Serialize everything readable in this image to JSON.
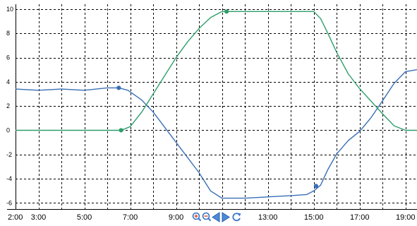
{
  "chart_data": {
    "type": "line",
    "xlim": [
      2.0,
      19.5
    ],
    "ylim": [
      -6.5,
      10.4
    ],
    "grid": true,
    "y_ticks": [
      {
        "value": 10,
        "label": "10"
      },
      {
        "value": 8,
        "label": "8"
      },
      {
        "value": 6,
        "label": "6"
      },
      {
        "value": 4,
        "label": "4"
      },
      {
        "value": 2,
        "label": "2"
      },
      {
        "value": 0,
        "label": "0"
      },
      {
        "value": -2,
        "label": "-2"
      },
      {
        "value": -4,
        "label": "-4"
      },
      {
        "value": -6,
        "label": "-6"
      }
    ],
    "x_ticks": [
      {
        "value": 2,
        "label": "2:00"
      },
      {
        "value": 3,
        "label": "3:00"
      },
      {
        "value": 5,
        "label": "5:00"
      },
      {
        "value": 7,
        "label": "7:00"
      },
      {
        "value": 9,
        "label": "9:00"
      },
      {
        "value": 13,
        "label": "13:00"
      },
      {
        "value": 15,
        "label": "15:00"
      },
      {
        "value": 17,
        "label": "17:00"
      },
      {
        "value": 19,
        "label": "19:00"
      }
    ],
    "x_grid": [
      2,
      3,
      4,
      5,
      6,
      7,
      8,
      9,
      10,
      11,
      12,
      13,
      14,
      15,
      16,
      17,
      18,
      19
    ],
    "y_grid": [
      10,
      8,
      6,
      4,
      2,
      0,
      -2,
      -4,
      -6
    ],
    "series": [
      {
        "color": "#3a6fb5",
        "points": [
          [
            2.0,
            3.4
          ],
          [
            3.0,
            3.3
          ],
          [
            4.0,
            3.4
          ],
          [
            5.0,
            3.3
          ],
          [
            6.0,
            3.5
          ],
          [
            6.5,
            3.5
          ],
          [
            6.9,
            3.3
          ],
          [
            7.5,
            2.5
          ],
          [
            8.0,
            1.5
          ],
          [
            9.0,
            -1.0
          ],
          [
            10.0,
            -3.5
          ],
          [
            10.5,
            -5.0
          ],
          [
            11.0,
            -5.6
          ],
          [
            12.0,
            -5.6
          ],
          [
            13.0,
            -5.5
          ],
          [
            14.0,
            -5.4
          ],
          [
            14.7,
            -5.3
          ],
          [
            15.0,
            -5.0
          ],
          [
            15.3,
            -4.4
          ],
          [
            15.6,
            -3.4
          ],
          [
            16.0,
            -2.2
          ],
          [
            16.5,
            -1.0
          ],
          [
            17.0,
            0.0
          ],
          [
            17.5,
            1.3
          ],
          [
            18.0,
            2.6
          ],
          [
            18.5,
            3.8
          ],
          [
            19.0,
            4.6
          ],
          [
            19.5,
            5.0
          ]
        ],
        "markers": [
          [
            6.5,
            3.5
          ],
          [
            15.1,
            -4.6
          ]
        ]
      },
      {
        "color": "#2e9e6b",
        "points": [
          [
            2.0,
            0.0
          ],
          [
            3.0,
            0.0
          ],
          [
            4.0,
            0.0
          ],
          [
            5.0,
            0.0
          ],
          [
            6.0,
            0.0
          ],
          [
            6.6,
            0.0
          ],
          [
            7.0,
            0.3
          ],
          [
            7.5,
            1.5
          ],
          [
            8.0,
            3.0
          ],
          [
            8.5,
            4.5
          ],
          [
            9.0,
            6.0
          ],
          [
            9.5,
            7.3
          ],
          [
            10.0,
            8.4
          ],
          [
            10.5,
            9.3
          ],
          [
            11.0,
            9.8
          ],
          [
            12.0,
            9.8
          ],
          [
            13.0,
            9.8
          ],
          [
            14.0,
            9.8
          ],
          [
            15.0,
            9.8
          ],
          [
            15.3,
            9.3
          ],
          [
            15.6,
            8.3
          ],
          [
            16.0,
            6.6
          ],
          [
            16.5,
            4.6
          ],
          [
            17.0,
            3.2
          ],
          [
            17.5,
            2.2
          ],
          [
            18.0,
            1.4
          ],
          [
            18.5,
            0.6
          ],
          [
            19.0,
            0.2
          ],
          [
            19.5,
            0.0
          ]
        ],
        "markers": [
          [
            6.6,
            0.0
          ],
          [
            11.2,
            9.8
          ]
        ]
      }
    ]
  },
  "toolbar": {
    "zoom_in_icon": "zoom-in-icon",
    "zoom_out_icon": "zoom-out-icon",
    "scroll_left_icon": "scroll-left-icon",
    "scroll_right_icon": "scroll-right-icon",
    "refresh_icon": "refresh-icon",
    "accent": "#3a74c8"
  }
}
